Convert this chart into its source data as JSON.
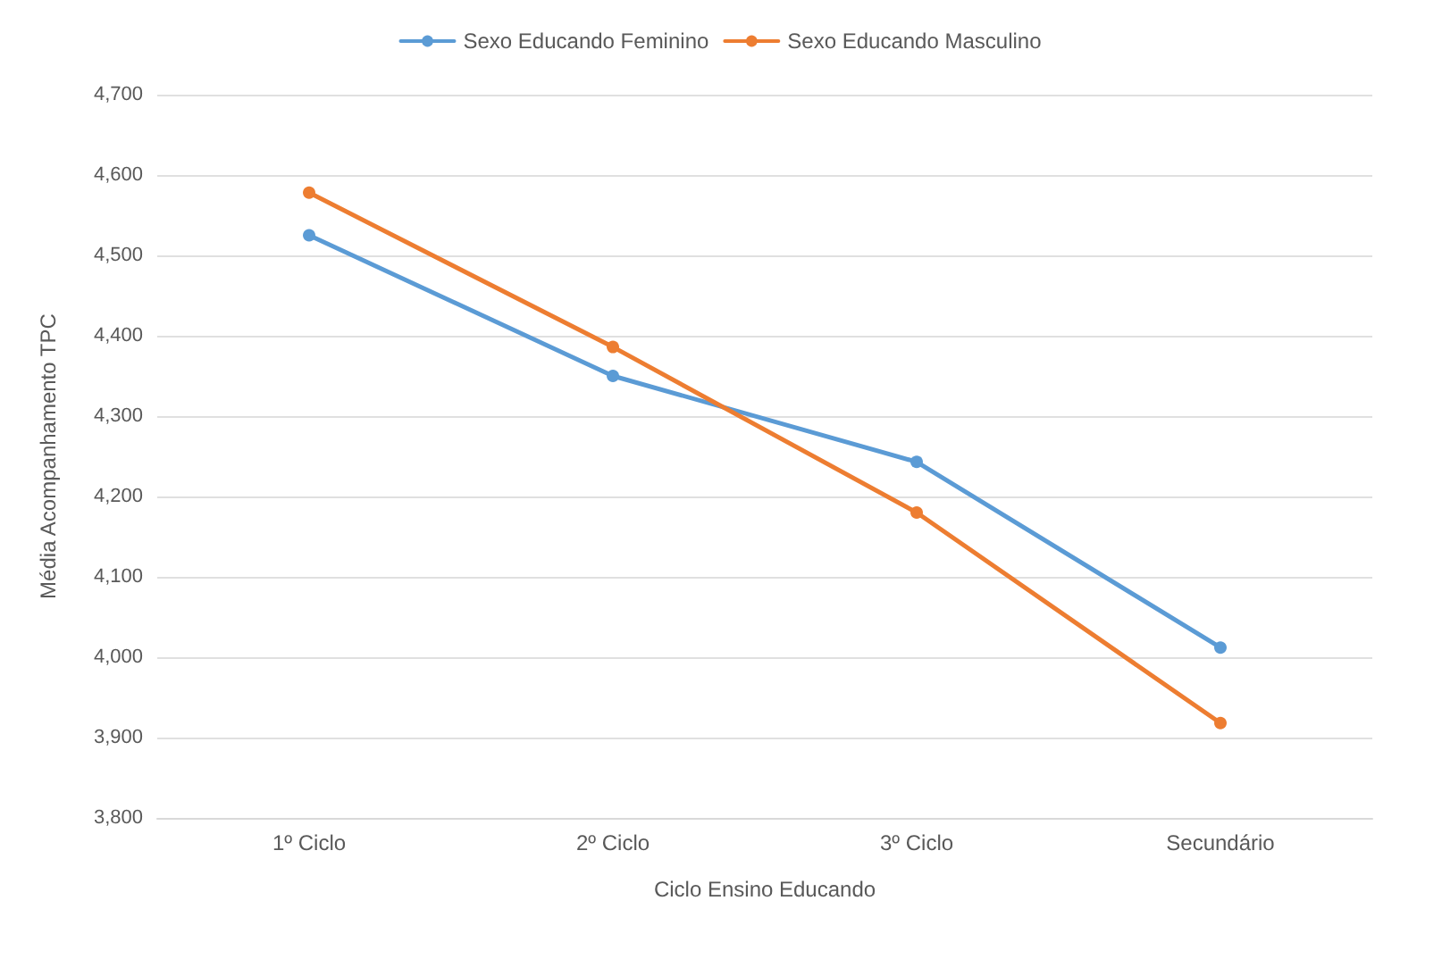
{
  "chart_data": {
    "type": "line",
    "xlabel": "Ciclo Ensino Educando",
    "ylabel": "Média Acompanhamento TPC",
    "categories": [
      "1º Ciclo",
      "2º Ciclo",
      "3º Ciclo",
      "Secundário"
    ],
    "series": [
      {
        "name": "Sexo Educando Feminino",
        "color": "#5b9bd5",
        "values": [
          4525,
          4350,
          4243,
          4012
        ]
      },
      {
        "name": "Sexo Educando Masculino",
        "color": "#ed7d31",
        "values": [
          4578,
          4386,
          4180,
          3918
        ]
      }
    ],
    "ylim": [
      3800,
      4700
    ],
    "yticks": [
      {
        "value": 3800,
        "label": "3,800"
      },
      {
        "value": 3900,
        "label": "3,900"
      },
      {
        "value": 4000,
        "label": "4,000"
      },
      {
        "value": 4100,
        "label": "4,100"
      },
      {
        "value": 4200,
        "label": "4,200"
      },
      {
        "value": 4300,
        "label": "4,300"
      },
      {
        "value": 4400,
        "label": "4,400"
      },
      {
        "value": 4500,
        "label": "4,500"
      },
      {
        "value": 4600,
        "label": "4,600"
      },
      {
        "value": 4700,
        "label": "4,700"
      }
    ],
    "grid": "y",
    "legend": "top",
    "marker": "circle",
    "line_style": "solid"
  }
}
